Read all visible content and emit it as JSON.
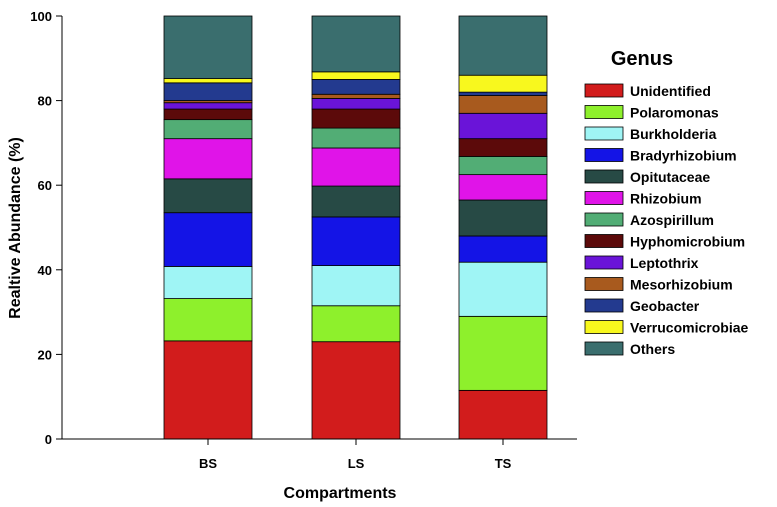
{
  "chart_data": {
    "type": "bar",
    "stacked": true,
    "title": "",
    "xlabel": "Compartments",
    "ylabel": "Realtive Abundance (%)",
    "ylim": [
      0,
      100
    ],
    "yticks": [
      "0",
      "20",
      "40",
      "60",
      "80",
      "100"
    ],
    "categories": [
      "BS",
      "LS",
      "TS"
    ],
    "legend_title": "Genus",
    "legend_position": "right",
    "series": [
      {
        "name": "Unidentified",
        "color": "#d21c1c",
        "values": [
          23.2,
          23.0,
          11.5
        ]
      },
      {
        "name": "Polaromonas",
        "color": "#8ef02c",
        "values": [
          10.0,
          8.5,
          17.5
        ]
      },
      {
        "name": "Burkholderia",
        "color": "#9ff5f5",
        "values": [
          7.6,
          9.5,
          12.8
        ]
      },
      {
        "name": "Bradyrhizobium",
        "color": "#1414e6",
        "values": [
          12.7,
          11.5,
          6.2
        ]
      },
      {
        "name": "Opitutaceae",
        "color": "#274a45",
        "values": [
          8.0,
          7.3,
          8.5
        ]
      },
      {
        "name": "Rhizobium",
        "color": "#e014e8",
        "values": [
          9.5,
          9.0,
          6.0
        ]
      },
      {
        "name": "Azospirillum",
        "color": "#52ad75",
        "values": [
          4.5,
          4.7,
          4.3
        ]
      },
      {
        "name": "Hyphomicrobium",
        "color": "#5c0a0a",
        "values": [
          2.5,
          4.5,
          4.2
        ]
      },
      {
        "name": "Leptothrix",
        "color": "#6a14d8",
        "values": [
          1.5,
          2.5,
          6.0
        ]
      },
      {
        "name": "Mesorhizobium",
        "color": "#a85a1e",
        "values": [
          0.5,
          1.0,
          4.2
        ]
      },
      {
        "name": "Geobacter",
        "color": "#233a8f",
        "values": [
          4.2,
          3.5,
          0.8
        ]
      },
      {
        "name": "Verrucomicrobiae",
        "color": "#f8f81e",
        "values": [
          1.0,
          1.8,
          4.0
        ]
      },
      {
        "name": "Others",
        "color": "#3a6e6e",
        "values": [
          14.8,
          13.2,
          14.0
        ]
      }
    ]
  }
}
